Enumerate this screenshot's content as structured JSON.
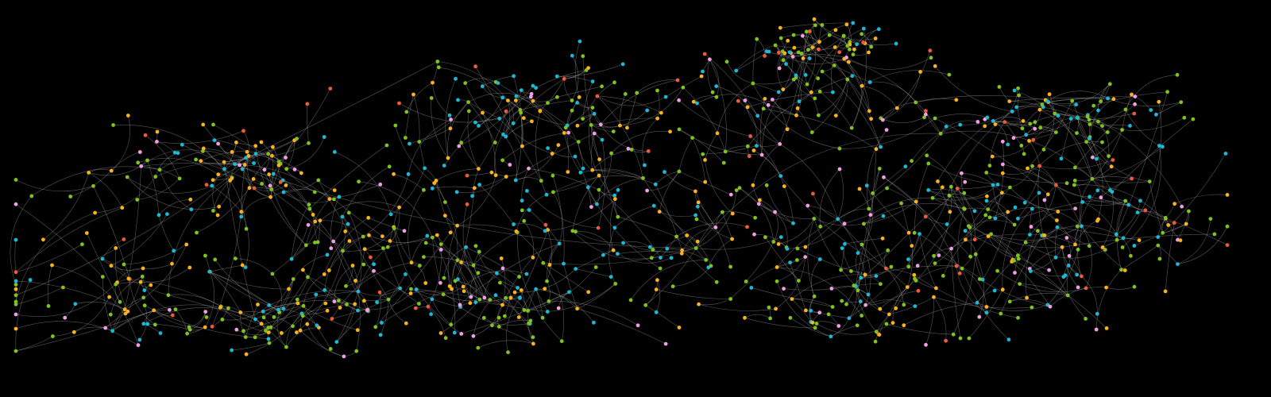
{
  "graph": {
    "background": "#000000",
    "edge_color": "#9a9a9a",
    "palette": {
      "green": "#7fc31c",
      "cyan": "#19bad6",
      "amber": "#fbb21c",
      "pink": "#f29ee6",
      "red": "#ef5a3a"
    },
    "palette_weights": {
      "green": 0.36,
      "cyan": 0.22,
      "amber": 0.27,
      "pink": 0.09,
      "red": 0.06
    },
    "clusters": [
      {
        "id": "c1",
        "color_bias": "amber"
      },
      {
        "id": "c2",
        "color_bias": "green"
      },
      {
        "id": "c3",
        "color_bias": "cyan"
      },
      {
        "id": "c4",
        "color_bias": "pink"
      },
      {
        "id": "c5",
        "color_bias": "red"
      }
    ]
  }
}
